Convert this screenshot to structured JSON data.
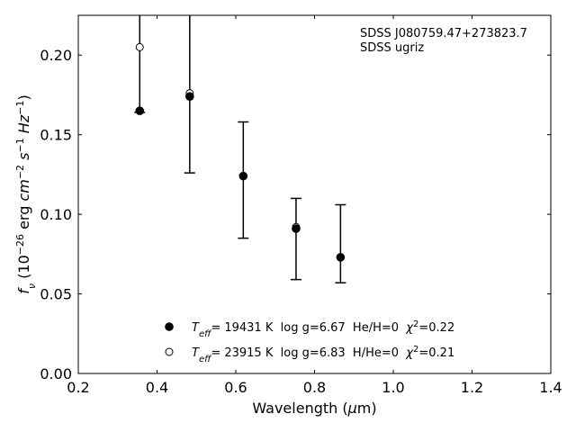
{
  "chart_data": {
    "type": "scatter",
    "xlabel": "Wavelength (μm)",
    "ylabel": "f_ν (10^-26 erg cm^-2 s^-1 Hz^-1)",
    "xlim": [
      0.2,
      1.4
    ],
    "ylim": [
      0.0,
      0.225
    ],
    "x_ticks": [
      "0.2",
      "0.4",
      "0.6",
      "0.8",
      "1.0",
      "1.2",
      "1.4"
    ],
    "y_ticks": [
      "0.00",
      "0.05",
      "0.10",
      "0.15",
      "0.20"
    ],
    "grid": false,
    "legend_position": "lower-center",
    "annotations": [
      "SDSS J080759.47+273823.7",
      "SDSS ugriz"
    ],
    "observed": {
      "x": [
        0.356,
        0.483,
        0.619,
        0.753,
        0.866
      ],
      "y": [
        0.165,
        0.175,
        0.124,
        0.092,
        0.073
      ],
      "yerr_low": [
        0.164,
        0.126,
        0.085,
        0.059,
        0.057
      ],
      "yerr_high": [
        0.235,
        0.235,
        0.158,
        0.11,
        0.106
      ]
    },
    "series": [
      {
        "label_parts": {
          "sym": "T",
          "sub": "eff",
          "rest": "= 19431 K  log g=6.67  He/H=0  ",
          "chi": "χ",
          "chi_sup": "2",
          "chi_rest": "=0.22"
        },
        "marker": "filled-circle",
        "x": [
          0.356,
          0.483,
          0.619,
          0.753,
          0.866
        ],
        "y": [
          0.165,
          0.174,
          0.124,
          0.091,
          0.073
        ]
      },
      {
        "label_parts": {
          "sym": "T",
          "sub": "eff",
          "rest": "= 23915 K  log g=6.83  H/He=0  ",
          "chi": "χ",
          "chi_sup": "2",
          "chi_rest": "=0.21"
        },
        "marker": "open-circle",
        "x": [
          0.356,
          0.483,
          0.619,
          0.753,
          0.866
        ],
        "y": [
          0.205,
          0.176,
          0.124,
          0.092,
          0.073
        ]
      }
    ]
  }
}
